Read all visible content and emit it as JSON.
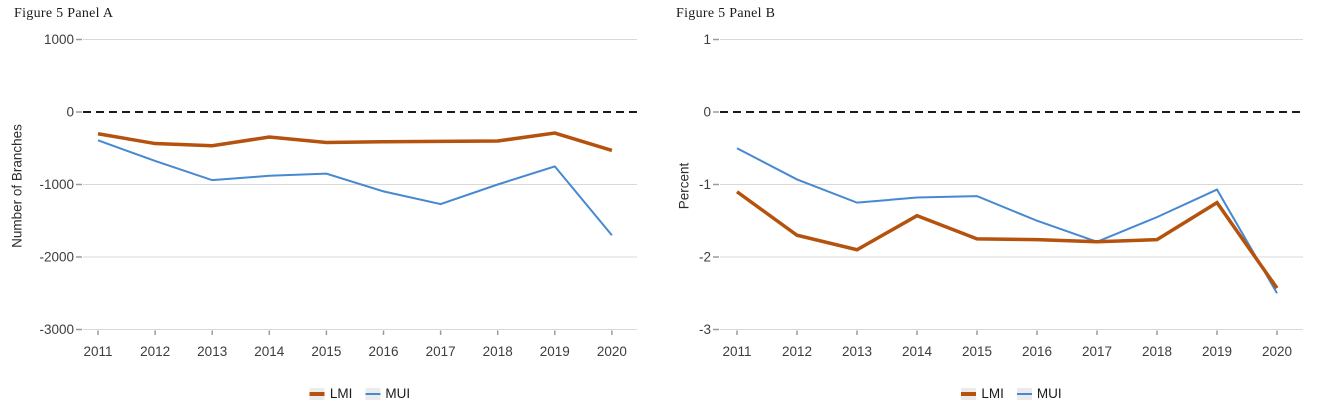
{
  "figure_background": "#ffffff",
  "chart_data": [
    {
      "type": "line",
      "title": "Figure 5 Panel A",
      "xlabel": "",
      "ylabel": "Number of Branches",
      "x": [
        "2011",
        "2012",
        "2013",
        "2014",
        "2015",
        "2016",
        "2017",
        "2018",
        "2019",
        "2020"
      ],
      "ylim": [
        -3000,
        1000
      ],
      "yticks": [
        1000,
        0,
        -1000,
        -2000,
        -3000
      ],
      "ytick_labels": [
        "1000",
        "0",
        "-1000",
        "-2000",
        "-3000"
      ],
      "grid": true,
      "gridline_color": "#d9d9d9",
      "zero_reference_line": "black dashed",
      "zero_line_color": "#1a1a1a",
      "legend_position": "bottom",
      "series": [
        {
          "name": "LMI",
          "color": "#b4520e",
          "line_width": 3.5,
          "values": [
            -300,
            -435,
            -465,
            -345,
            -420,
            -410,
            -405,
            -400,
            -290,
            -530
          ]
        },
        {
          "name": "MUI",
          "color": "#4689d1",
          "line_width": 2,
          "values": [
            -390,
            -675,
            -940,
            -880,
            -850,
            -1095,
            -1270,
            -1000,
            -750,
            -1700
          ]
        }
      ]
    },
    {
      "type": "line",
      "title": "Figure 5 Panel B",
      "xlabel": "",
      "ylabel": "Percent",
      "x": [
        "2011",
        "2012",
        "2013",
        "2014",
        "2015",
        "2016",
        "2017",
        "2018",
        "2019",
        "2020"
      ],
      "ylim": [
        -3,
        1
      ],
      "yticks": [
        1,
        0,
        -1,
        -2,
        -3
      ],
      "ytick_labels": [
        "1",
        "0",
        "-1",
        "-2",
        "-3"
      ],
      "grid": true,
      "gridline_color": "#d9d9d9",
      "zero_reference_line": "black dashed",
      "zero_line_color": "#1a1a1a",
      "legend_position": "bottom",
      "series": [
        {
          "name": "LMI",
          "color": "#b4520e",
          "line_width": 3.5,
          "values": [
            -1.1,
            -1.7,
            -1.9,
            -1.43,
            -1.75,
            -1.76,
            -1.79,
            -1.76,
            -1.25,
            -2.43
          ]
        },
        {
          "name": "MUI",
          "color": "#4689d1",
          "line_width": 2,
          "values": [
            -0.5,
            -0.93,
            -1.25,
            -1.18,
            -1.16,
            -1.5,
            -1.79,
            -1.45,
            -1.07,
            -2.5
          ]
        }
      ]
    }
  ]
}
